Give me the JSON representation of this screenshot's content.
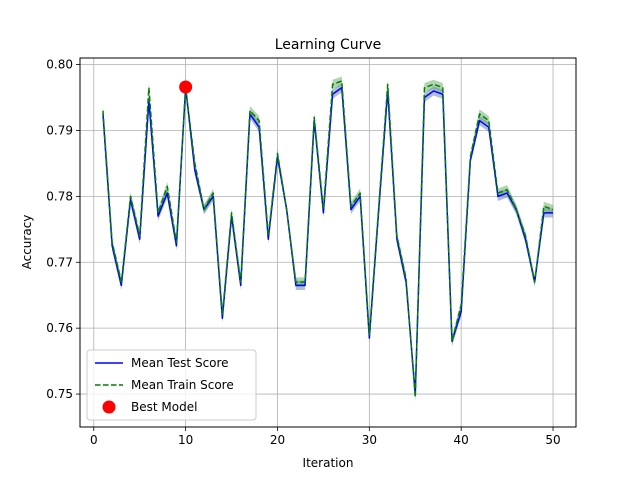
{
  "chart_data": {
    "type": "line",
    "title": "Learning Curve",
    "xlabel": "Iteration",
    "ylabel": "Accuracy",
    "xlim": [
      -1.5,
      52.5
    ],
    "ylim": [
      0.745,
      0.801
    ],
    "xticks": [
      0,
      10,
      20,
      30,
      40,
      50
    ],
    "yticks": [
      0.75,
      0.76,
      0.77,
      0.78,
      0.79,
      0.8
    ],
    "xtick_labels": [
      "0",
      "10",
      "20",
      "30",
      "40",
      "50"
    ],
    "ytick_labels": [
      "0.75",
      "0.76",
      "0.77",
      "0.78",
      "0.79",
      "0.80"
    ],
    "grid": true,
    "legend_position": "lower-left",
    "x": [
      1,
      2,
      3,
      4,
      5,
      6,
      7,
      8,
      9,
      10,
      11,
      12,
      13,
      14,
      15,
      16,
      17,
      18,
      19,
      20,
      21,
      22,
      23,
      24,
      25,
      26,
      27,
      28,
      29,
      30,
      31,
      32,
      33,
      34,
      35,
      36,
      37,
      38,
      39,
      40,
      41,
      42,
      43,
      44,
      45,
      46,
      47,
      48,
      49,
      50
    ],
    "series": [
      {
        "name": "Mean Test Score",
        "color": "#0000ff",
        "style": "solid",
        "band_color": "#4a6fa5",
        "band_halfwidth": 0.0007,
        "values": [
          0.7925,
          0.7725,
          0.7665,
          0.7795,
          0.7735,
          0.7945,
          0.777,
          0.7805,
          0.7725,
          0.7965,
          0.784,
          0.778,
          0.78,
          0.7615,
          0.777,
          0.7665,
          0.7925,
          0.7905,
          0.7735,
          0.786,
          0.778,
          0.7665,
          0.7665,
          0.7915,
          0.7775,
          0.7955,
          0.7965,
          0.778,
          0.78,
          0.7585,
          0.7775,
          0.796,
          0.7735,
          0.767,
          0.75,
          0.795,
          0.796,
          0.7955,
          0.758,
          0.7625,
          0.7855,
          0.7915,
          0.7905,
          0.78,
          0.7805,
          0.778,
          0.7735,
          0.767,
          0.7775,
          0.7775
        ]
      },
      {
        "name": "Mean Train Score",
        "color": "#008000",
        "style": "dashed",
        "band_color": "#55a055",
        "band_halfwidth": 0.0007,
        "values": [
          0.793,
          0.773,
          0.767,
          0.78,
          0.774,
          0.7965,
          0.7775,
          0.7815,
          0.773,
          0.7965,
          0.785,
          0.778,
          0.7805,
          0.762,
          0.7775,
          0.767,
          0.793,
          0.7915,
          0.774,
          0.7865,
          0.778,
          0.767,
          0.767,
          0.792,
          0.778,
          0.797,
          0.7975,
          0.7785,
          0.7805,
          0.759,
          0.778,
          0.797,
          0.774,
          0.7675,
          0.7495,
          0.7965,
          0.797,
          0.7965,
          0.758,
          0.7635,
          0.786,
          0.7925,
          0.7915,
          0.7805,
          0.781,
          0.778,
          0.774,
          0.767,
          0.7785,
          0.778
        ]
      }
    ],
    "highlight": {
      "name": "Best Model",
      "x": 10,
      "y": 0.7966,
      "color": "#ff0000"
    }
  }
}
